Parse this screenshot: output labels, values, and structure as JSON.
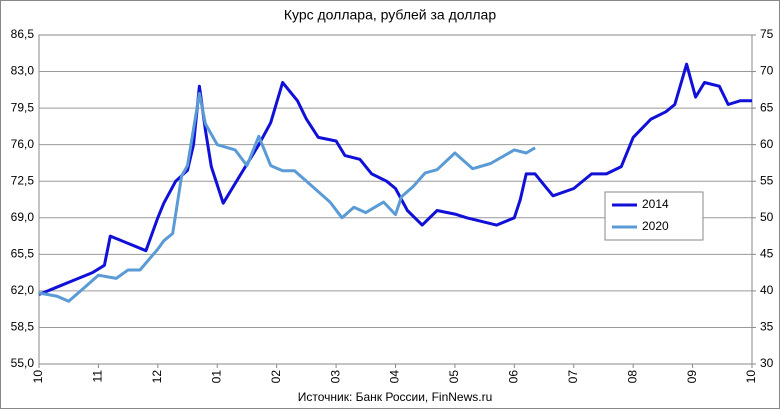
{
  "chart_data": {
    "type": "line",
    "title": "Курс доллара, рублей за доллар",
    "source": "Источник: Банк России, FinNews.ru",
    "xlim": [
      0,
      12
    ],
    "xticks": [
      {
        "value": 0,
        "label": "10"
      },
      {
        "value": 1,
        "label": "11"
      },
      {
        "value": 2,
        "label": "12"
      },
      {
        "value": 3,
        "label": "01"
      },
      {
        "value": 4,
        "label": "02"
      },
      {
        "value": 5,
        "label": "03"
      },
      {
        "value": 6,
        "label": "04"
      },
      {
        "value": 7,
        "label": "05"
      },
      {
        "value": 8,
        "label": "06"
      },
      {
        "value": 9,
        "label": "07"
      },
      {
        "value": 10,
        "label": "08"
      },
      {
        "value": 11,
        "label": "09"
      },
      {
        "value": 12,
        "label": "10"
      }
    ],
    "ylim": [
      55,
      86.5
    ],
    "yticks": [
      {
        "value": 55,
        "label": "55,0"
      },
      {
        "value": 58.5,
        "label": "58,5"
      },
      {
        "value": 62,
        "label": "62,0"
      },
      {
        "value": 65.5,
        "label": "65,5"
      },
      {
        "value": 69,
        "label": "69,0"
      },
      {
        "value": 72.5,
        "label": "72,5"
      },
      {
        "value": 76,
        "label": "76,0"
      },
      {
        "value": 79.5,
        "label": "79,5"
      },
      {
        "value": 83,
        "label": "83,0"
      },
      {
        "value": 86.5,
        "label": "86,5"
      }
    ],
    "y2lim": [
      30,
      75
    ],
    "y2ticks": [
      30,
      35,
      40,
      45,
      50,
      55,
      60,
      65,
      70,
      75
    ],
    "grid": true,
    "legend": "right",
    "series": [
      {
        "name": "2014",
        "color": "#1010d8",
        "axis": "y2",
        "x": [
          0,
          0.3,
          0.6,
          0.9,
          1.1,
          1.2,
          1.5,
          1.8,
          2.0,
          2.1,
          2.3,
          2.5,
          2.6,
          2.7,
          2.8,
          2.9,
          3.1,
          3.4,
          3.7,
          3.9,
          4.1,
          4.35,
          4.5,
          4.7,
          5.0,
          5.15,
          5.4,
          5.6,
          5.85,
          6.0,
          6.2,
          6.45,
          6.7,
          7.0,
          7.2,
          7.45,
          7.7,
          8.0,
          8.1,
          8.2,
          8.35,
          8.5,
          8.65,
          9.0,
          9.3,
          9.55,
          9.8,
          10.0,
          10.3,
          10.55,
          10.7,
          10.9,
          11.05,
          11.2,
          11.45,
          11.6,
          11.8,
          12.0
        ],
        "values": [
          39.5,
          40.5,
          41.5,
          42.5,
          43.5,
          47.5,
          46.5,
          45.5,
          50,
          52,
          55,
          56.5,
          60,
          68,
          62,
          57,
          52,
          56,
          60,
          63,
          68.5,
          66,
          63.5,
          61,
          60.5,
          58.5,
          58,
          56,
          55,
          54,
          51,
          49,
          51,
          50.5,
          50,
          49.5,
          49,
          50,
          52.5,
          56,
          56,
          54.5,
          53,
          54,
          56,
          56,
          57,
          61,
          63.5,
          64.5,
          65.5,
          71,
          66.5,
          68.5,
          68,
          65.5,
          66,
          66
        ]
      },
      {
        "name": "2020",
        "color": "#5b9bd5",
        "x": [
          0,
          0.3,
          0.5,
          0.8,
          1.0,
          1.3,
          1.5,
          1.7,
          2.0,
          2.1,
          2.25,
          2.4,
          2.5,
          2.6,
          2.7,
          2.8,
          2.9,
          3.0,
          3.3,
          3.5,
          3.7,
          3.9,
          4.1,
          4.3,
          4.6,
          4.9,
          5.1,
          5.3,
          5.5,
          5.8,
          6.0,
          6.1,
          6.3,
          6.5,
          6.7,
          7.0,
          7.3,
          7.6,
          8.0,
          8.2,
          8.35
        ],
        "values": [
          61.8,
          61.5,
          61,
          62.5,
          63.5,
          63.2,
          64,
          64,
          66,
          66.8,
          67.5,
          73,
          74,
          77.5,
          80.9,
          78,
          77,
          76,
          75.5,
          74,
          76.8,
          74,
          73.5,
          73.5,
          72,
          70.5,
          69,
          70,
          69.5,
          70.5,
          69.3,
          71,
          72,
          73.3,
          73.6,
          75.2,
          73.7,
          74.2,
          75.5,
          75.2,
          75.7
        ]
      }
    ]
  }
}
